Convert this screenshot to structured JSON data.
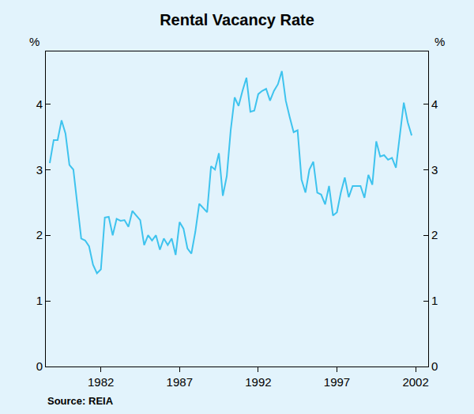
{
  "chart_data": {
    "type": "line",
    "title": "Rental Vacancy Rate",
    "y_label": "%",
    "source": "Source: REIA",
    "color": "#3EC3EE",
    "grid": false,
    "xlim": [
      1978.5,
      2002.8
    ],
    "xticks": [
      1982,
      1987,
      1992,
      1997,
      2002
    ],
    "ylim": [
      0,
      4.8
    ],
    "yticks": [
      0,
      1,
      2,
      3,
      4
    ],
    "x": [
      1978.75,
      1979,
      1979.25,
      1979.5,
      1979.75,
      1980,
      1980.25,
      1980.5,
      1980.75,
      1981,
      1981.25,
      1981.5,
      1981.75,
      1982,
      1982.25,
      1982.5,
      1982.75,
      1983,
      1983.25,
      1983.5,
      1983.75,
      1984,
      1984.25,
      1984.5,
      1984.75,
      1985,
      1985.25,
      1985.5,
      1985.75,
      1986,
      1986.25,
      1986.5,
      1986.75,
      1987,
      1987.25,
      1987.5,
      1987.75,
      1988,
      1988.25,
      1988.5,
      1988.75,
      1989,
      1989.25,
      1989.5,
      1989.75,
      1990,
      1990.25,
      1990.5,
      1990.75,
      1991,
      1991.25,
      1991.5,
      1991.75,
      1992,
      1992.25,
      1992.5,
      1992.75,
      1993,
      1993.25,
      1993.5,
      1993.75,
      1994,
      1994.25,
      1994.5,
      1994.75,
      1995,
      1995.25,
      1995.5,
      1995.75,
      1996,
      1996.25,
      1996.5,
      1996.75,
      1997,
      1997.25,
      1997.5,
      1997.75,
      1998,
      1998.25,
      1998.5,
      1998.75,
      1999,
      1999.25,
      1999.5,
      1999.75,
      2000,
      2000.25,
      2000.5,
      2000.75,
      2001,
      2001.25,
      2001.5,
      2001.75
    ],
    "values": [
      3.1,
      3.45,
      3.45,
      3.75,
      3.55,
      3.07,
      3.0,
      2.45,
      1.95,
      1.92,
      1.83,
      1.55,
      1.42,
      1.48,
      2.27,
      2.28,
      2.0,
      2.25,
      2.22,
      2.23,
      2.13,
      2.37,
      2.3,
      2.23,
      1.85,
      2.0,
      1.92,
      2.0,
      1.78,
      1.95,
      1.85,
      1.95,
      1.7,
      2.2,
      2.1,
      1.8,
      1.72,
      2.05,
      2.48,
      2.42,
      2.35,
      3.05,
      3.0,
      3.25,
      2.6,
      2.9,
      3.6,
      4.1,
      3.97,
      4.2,
      4.4,
      3.88,
      3.9,
      4.15,
      4.2,
      4.23,
      4.05,
      4.2,
      4.3,
      4.5,
      4.05,
      3.8,
      3.57,
      3.6,
      2.85,
      2.65,
      3.0,
      3.12,
      2.65,
      2.62,
      2.47,
      2.75,
      2.3,
      2.35,
      2.65,
      2.88,
      2.58,
      2.75,
      2.75,
      2.75,
      2.57,
      2.92,
      2.77,
      3.43,
      3.2,
      3.22,
      3.15,
      3.18,
      3.03,
      3.5,
      4.02,
      3.72,
      3.52
    ]
  }
}
